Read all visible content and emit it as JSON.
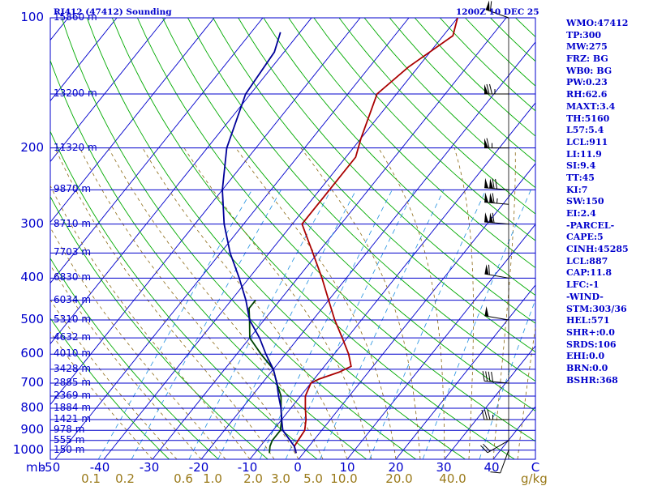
{
  "header": {
    "title": "RJ412 (47412) Sounding",
    "datetime": "1200Z 10 DEC 25"
  },
  "stats": [
    "WMO:47412",
    "TP:300",
    "MW:275",
    "FRZ: BG",
    "WB0: BG",
    "PW:0.23",
    "RH:62.6",
    "MAXT:3.4",
    "TH:5160",
    "L57:5.4",
    "LCL:911",
    "LI:11.9",
    "SI:9.4",
    "TT:45",
    "KI:7",
    "SW:150",
    "EI:2.4",
    "-PARCEL-",
    "CAPE:5",
    "CINH:45285",
    "LCL:887",
    "CAP:11.8",
    "LFC:-1",
    "-WIND-",
    "STM:303/36",
    "HEL:571",
    "SHR+:0.0",
    "SRDS:106",
    "EHI:0.0",
    "BRN:0.0",
    "BSHR:368"
  ],
  "colors": {
    "axis": "#0000cc",
    "temperature": "#aa0000",
    "dewpoint": "#004400",
    "virtual": "#000099",
    "adiabat": "#00aa00",
    "moist": "#8b6914",
    "mixing": "#2090e0"
  },
  "chart_data": {
    "type": "line",
    "title": "RJ412 (47412) Sounding 1200Z 10 DEC 25",
    "xlabel": "Temperature (C)",
    "ylabel": "Pressure (mb)",
    "pressure_ticks": [
      100,
      200,
      300,
      400,
      500,
      600,
      700,
      800,
      900,
      1000
    ],
    "pressure_tick_labels": [
      "100",
      "200",
      "300",
      "400",
      "500",
      "600",
      "700",
      "800",
      "900",
      "1000"
    ],
    "height_labels": [
      {
        "p": 100,
        "label": "15860 m"
      },
      {
        "p": 150,
        "label": "13200 m"
      },
      {
        "p": 200,
        "label": "11320 m"
      },
      {
        "p": 250,
        "label": "9870 m"
      },
      {
        "p": 300,
        "label": "8710 m"
      },
      {
        "p": 350,
        "label": "7703 m"
      },
      {
        "p": 400,
        "label": "6830 m"
      },
      {
        "p": 450,
        "label": "6034 m"
      },
      {
        "p": 500,
        "label": "5310 m"
      },
      {
        "p": 550,
        "label": "4632 m"
      },
      {
        "p": 600,
        "label": "4010 m"
      },
      {
        "p": 650,
        "label": "3428 m"
      },
      {
        "p": 700,
        "label": "2885 m"
      },
      {
        "p": 750,
        "label": "2369 m"
      },
      {
        "p": 800,
        "label": "1884 m"
      },
      {
        "p": 850,
        "label": "1421 m"
      },
      {
        "p": 900,
        "label": "978 m"
      },
      {
        "p": 950,
        "label": "555 m"
      },
      {
        "p": 1000,
        "label": "150 m"
      }
    ],
    "temp_tick_labels": [
      "-50",
      "-40",
      "-30",
      "-20",
      "-10",
      "0",
      "10",
      "20",
      "30",
      "40",
      "C"
    ],
    "pressure_unit": "mb",
    "mixing_ratio_labels": [
      "0.1",
      "0.2",
      "0.6",
      "1.0",
      "2.0",
      "3.0",
      "5.0",
      "10.0",
      "20.0",
      "40.0"
    ],
    "mixing_unit": "g/kg",
    "xlim": [
      -50,
      50
    ],
    "ylim": [
      1000,
      100
    ],
    "series": [
      {
        "name": "Temperature",
        "color": "#aa0000",
        "points": [
          [
            1016,
            -1.5
          ],
          [
            980,
            -3
          ],
          [
            900,
            -3.5
          ],
          [
            850,
            -5
          ],
          [
            800,
            -7
          ],
          [
            750,
            -9
          ],
          [
            700,
            -10
          ],
          [
            685,
            -9
          ],
          [
            660,
            -6
          ],
          [
            640,
            -4.5
          ],
          [
            600,
            -7
          ],
          [
            550,
            -11
          ],
          [
            500,
            -15.5
          ],
          [
            450,
            -20
          ],
          [
            400,
            -25
          ],
          [
            350,
            -31
          ],
          [
            300,
            -38
          ],
          [
            250,
            -38
          ],
          [
            210,
            -38
          ],
          [
            190,
            -40
          ],
          [
            150,
            -44
          ],
          [
            130,
            -42
          ],
          [
            110,
            -38
          ],
          [
            100,
            -40
          ]
        ]
      },
      {
        "name": "Dew point",
        "color": "#004400",
        "points": [
          [
            1016,
            -7
          ],
          [
            980,
            -8
          ],
          [
            950,
            -8.5
          ],
          [
            920,
            -8.5
          ],
          [
            900,
            -8.5
          ],
          [
            850,
            -10
          ],
          [
            800,
            -12
          ],
          [
            750,
            -14
          ],
          [
            700,
            -17
          ],
          [
            650,
            -20
          ],
          [
            600,
            -25
          ],
          [
            550,
            -30
          ],
          [
            500,
            -33
          ],
          [
            470,
            -35
          ],
          [
            450,
            -35
          ]
        ]
      },
      {
        "name": "Virtual temperature",
        "color": "#000099",
        "points": [
          [
            1016,
            -1.5
          ],
          [
            980,
            -3
          ],
          [
            900,
            -8
          ],
          [
            850,
            -10
          ],
          [
            800,
            -12
          ],
          [
            750,
            -14.5
          ],
          [
            700,
            -17
          ],
          [
            650,
            -20
          ],
          [
            600,
            -24
          ],
          [
            550,
            -28
          ],
          [
            500,
            -33
          ],
          [
            450,
            -37
          ],
          [
            400,
            -42
          ],
          [
            350,
            -48
          ],
          [
            300,
            -54
          ],
          [
            250,
            -60
          ],
          [
            200,
            -66
          ],
          [
            150,
            -71
          ],
          [
            120,
            -72
          ],
          [
            108,
            -74
          ]
        ]
      }
    ],
    "wind_barbs": [
      {
        "p": 100,
        "dir": 290,
        "spd": 60
      },
      {
        "p": 150,
        "dir": 270,
        "spd": 75
      },
      {
        "p": 200,
        "dir": 270,
        "spd": 65
      },
      {
        "p": 250,
        "dir": 275,
        "spd": 120
      },
      {
        "p": 270,
        "dir": 275,
        "spd": 115
      },
      {
        "p": 300,
        "dir": 275,
        "spd": 110
      },
      {
        "p": 400,
        "dir": 280,
        "spd": 60
      },
      {
        "p": 500,
        "dir": 280,
        "spd": 50
      },
      {
        "p": 700,
        "dir": 275,
        "spd": 40
      },
      {
        "p": 850,
        "dir": 270,
        "spd": 35
      },
      {
        "p": 950,
        "dir": 240,
        "spd": 20
      },
      {
        "p": 1000,
        "dir": 200,
        "spd": 10
      }
    ]
  }
}
